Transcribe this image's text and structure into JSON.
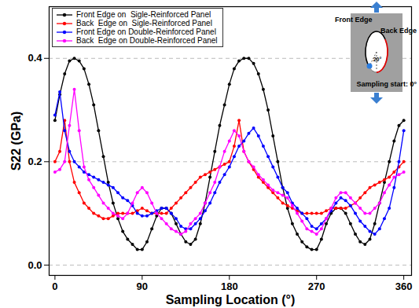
{
  "chart_data": {
    "type": "line",
    "x_label": "Sampling Location (°)",
    "y_label": "S22 (GPa)",
    "xlim": [
      -6,
      368
    ],
    "ylim": [
      -0.02,
      0.5
    ],
    "xticks": [
      0,
      90,
      180,
      270,
      360
    ],
    "yticks": [
      {
        "value": 0,
        "label": "0.0"
      },
      0.2,
      0.4
    ],
    "grid": true,
    "legend": "upper left",
    "marker": "circle",
    "annotations": [
      "Front Edge",
      "Back Edge",
      "20°",
      "Sampling start: 0°"
    ],
    "x": [
      0,
      5,
      10,
      15,
      20,
      25,
      30,
      35,
      40,
      45,
      50,
      55,
      60,
      65,
      70,
      75,
      80,
      85,
      90,
      95,
      100,
      105,
      110,
      115,
      120,
      125,
      130,
      135,
      140,
      145,
      150,
      155,
      160,
      165,
      170,
      175,
      180,
      185,
      190,
      195,
      200,
      205,
      210,
      215,
      220,
      225,
      230,
      235,
      240,
      245,
      250,
      255,
      260,
      265,
      270,
      275,
      280,
      285,
      290,
      295,
      300,
      305,
      310,
      315,
      320,
      325,
      330,
      335,
      340,
      345,
      350,
      355,
      360
    ],
    "series": [
      {
        "name": "Front Edge on  Sigle-Reinforced Panel",
        "color": "#000000",
        "values": [
          0.28,
          0.33,
          0.37,
          0.395,
          0.4,
          0.395,
          0.38,
          0.35,
          0.31,
          0.26,
          0.21,
          0.16,
          0.12,
          0.09,
          0.065,
          0.05,
          0.04,
          0.03,
          0.03,
          0.045,
          0.07,
          0.095,
          0.11,
          0.11,
          0.1,
          0.08,
          0.06,
          0.045,
          0.04,
          0.05,
          0.08,
          0.12,
          0.17,
          0.22,
          0.27,
          0.31,
          0.35,
          0.38,
          0.395,
          0.4,
          0.4,
          0.39,
          0.37,
          0.34,
          0.3,
          0.25,
          0.2,
          0.15,
          0.11,
          0.08,
          0.06,
          0.045,
          0.035,
          0.03,
          0.03,
          0.05,
          0.08,
          0.1,
          0.11,
          0.11,
          0.1,
          0.08,
          0.06,
          0.045,
          0.04,
          0.05,
          0.08,
          0.12,
          0.16,
          0.2,
          0.24,
          0.27,
          0.28
        ]
      },
      {
        "name": "Back  Edge on  Sigle-Reinforced Panel",
        "color": "#ff0000",
        "values": [
          0.2,
          0.22,
          0.28,
          0.2,
          0.16,
          0.14,
          0.12,
          0.11,
          0.1,
          0.095,
          0.09,
          0.09,
          0.095,
          0.1,
          0.1,
          0.1,
          0.1,
          0.105,
          0.11,
          0.105,
          0.1,
          0.1,
          0.1,
          0.1,
          0.11,
          0.12,
          0.13,
          0.14,
          0.15,
          0.16,
          0.17,
          0.175,
          0.18,
          0.185,
          0.19,
          0.195,
          0.2,
          0.23,
          0.28,
          0.22,
          0.2,
          0.185,
          0.17,
          0.16,
          0.15,
          0.14,
          0.13,
          0.12,
          0.115,
          0.11,
          0.105,
          0.1,
          0.1,
          0.1,
          0.1,
          0.1,
          0.105,
          0.11,
          0.11,
          0.11,
          0.11,
          0.115,
          0.12,
          0.13,
          0.14,
          0.15,
          0.155,
          0.16,
          0.165,
          0.17,
          0.18,
          0.19,
          0.2
        ]
      },
      {
        "name": "Front Edge on Double-Reinforced Panel",
        "color": "#0000ff",
        "values": [
          0.29,
          0.335,
          0.26,
          0.22,
          0.2,
          0.19,
          0.18,
          0.175,
          0.17,
          0.165,
          0.16,
          0.155,
          0.15,
          0.14,
          0.13,
          0.125,
          0.115,
          0.1,
          0.095,
          0.095,
          0.1,
          0.105,
          0.11,
          0.11,
          0.1,
          0.09,
          0.075,
          0.07,
          0.07,
          0.08,
          0.09,
          0.105,
          0.12,
          0.14,
          0.16,
          0.175,
          0.19,
          0.21,
          0.23,
          0.24,
          0.255,
          0.265,
          0.25,
          0.23,
          0.21,
          0.19,
          0.17,
          0.15,
          0.14,
          0.12,
          0.11,
          0.1,
          0.09,
          0.075,
          0.07,
          0.08,
          0.09,
          0.105,
          0.12,
          0.13,
          0.125,
          0.115,
          0.1,
          0.085,
          0.075,
          0.065,
          0.06,
          0.07,
          0.09,
          0.11,
          0.15,
          0.2,
          0.26
        ]
      },
      {
        "name": "Back  Edge on Double-Reinforced Panel",
        "color": "#ff00ff",
        "values": [
          0.18,
          0.185,
          0.2,
          0.27,
          0.34,
          0.26,
          0.19,
          0.165,
          0.15,
          0.135,
          0.12,
          0.11,
          0.1,
          0.095,
          0.09,
          0.1,
          0.12,
          0.14,
          0.15,
          0.14,
          0.12,
          0.1,
          0.09,
          0.08,
          0.07,
          0.065,
          0.06,
          0.065,
          0.08,
          0.09,
          0.1,
          0.12,
          0.14,
          0.16,
          0.19,
          0.22,
          0.24,
          0.26,
          0.25,
          0.22,
          0.2,
          0.19,
          0.175,
          0.165,
          0.155,
          0.145,
          0.14,
          0.135,
          0.13,
          0.115,
          0.1,
          0.085,
          0.07,
          0.065,
          0.06,
          0.07,
          0.09,
          0.11,
          0.13,
          0.14,
          0.14,
          0.13,
          0.12,
          0.11,
          0.1,
          0.1,
          0.11,
          0.12,
          0.14,
          0.155,
          0.17,
          0.175,
          0.18
        ]
      }
    ]
  }
}
